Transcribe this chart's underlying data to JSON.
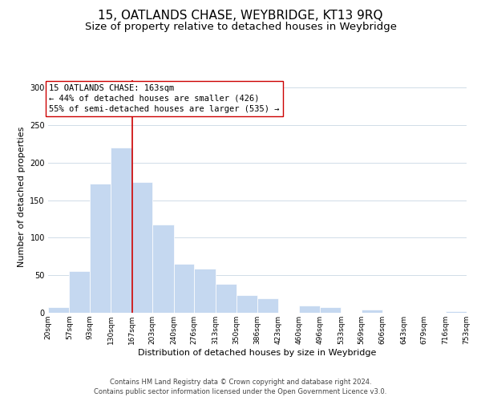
{
  "title": "15, OATLANDS CHASE, WEYBRIDGE, KT13 9RQ",
  "subtitle": "Size of property relative to detached houses in Weybridge",
  "xlabel": "Distribution of detached houses by size in Weybridge",
  "ylabel": "Number of detached properties",
  "bar_edges": [
    20,
    57,
    93,
    130,
    167,
    203,
    240,
    276,
    313,
    350,
    386,
    423,
    460,
    496,
    533,
    569,
    606,
    643,
    679,
    716,
    753
  ],
  "bar_heights": [
    7,
    56,
    172,
    220,
    174,
    118,
    65,
    59,
    39,
    24,
    19,
    0,
    10,
    8,
    0,
    4,
    0,
    0,
    0,
    2
  ],
  "bar_color": "#c5d8f0",
  "bar_edgecolor": "#ffffff",
  "vline_x": 167,
  "vline_color": "#cc0000",
  "annotation_line1": "15 OATLANDS CHASE: 163sqm",
  "annotation_line2": "← 44% of detached houses are smaller (426)",
  "annotation_line3": "55% of semi-detached houses are larger (535) →",
  "ylim": [
    0,
    310
  ],
  "xlim": [
    20,
    753
  ],
  "tick_labels": [
    "20sqm",
    "57sqm",
    "93sqm",
    "130sqm",
    "167sqm",
    "203sqm",
    "240sqm",
    "276sqm",
    "313sqm",
    "350sqm",
    "386sqm",
    "423sqm",
    "460sqm",
    "496sqm",
    "533sqm",
    "569sqm",
    "606sqm",
    "643sqm",
    "679sqm",
    "716sqm",
    "753sqm"
  ],
  "tick_positions": [
    20,
    57,
    93,
    130,
    167,
    203,
    240,
    276,
    313,
    350,
    386,
    423,
    460,
    496,
    533,
    569,
    606,
    643,
    679,
    716,
    753
  ],
  "yticks": [
    0,
    50,
    100,
    150,
    200,
    250,
    300
  ],
  "footer_line1": "Contains HM Land Registry data © Crown copyright and database right 2024.",
  "footer_line2": "Contains public sector information licensed under the Open Government Licence v3.0.",
  "background_color": "#ffffff",
  "grid_color": "#d0dce8",
  "title_fontsize": 11,
  "subtitle_fontsize": 9.5,
  "axis_label_fontsize": 8,
  "tick_fontsize": 6.5,
  "annotation_fontsize": 7.5,
  "footer_fontsize": 6
}
